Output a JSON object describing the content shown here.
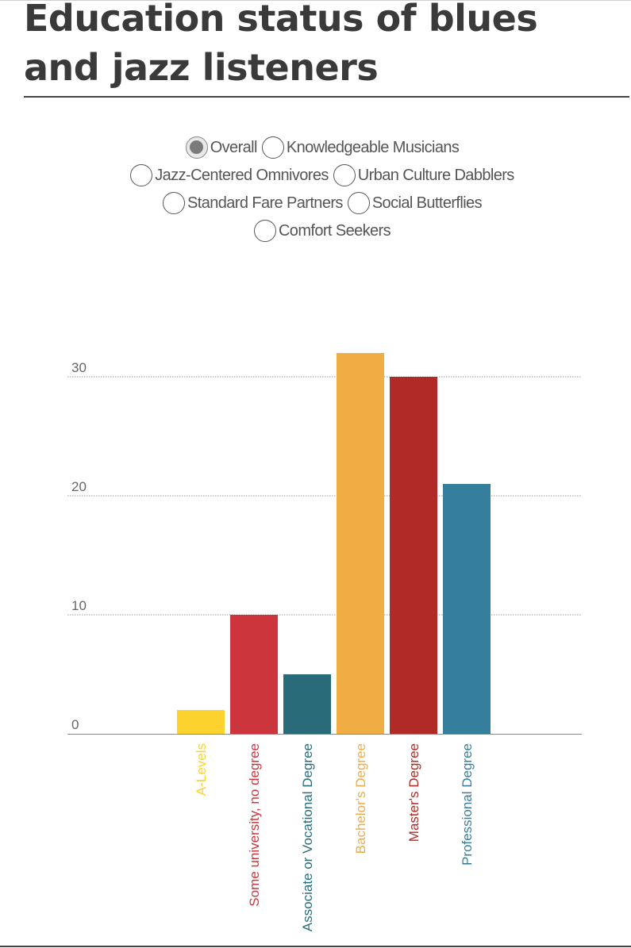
{
  "title": "Education status of blues and jazz listeners",
  "filters": {
    "rows": [
      [
        {
          "label": "Overall",
          "checked": true
        },
        {
          "label": "Knowledgeable Musicians",
          "checked": false
        }
      ],
      [
        {
          "label": "Jazz-Centered Omnivores",
          "checked": false
        },
        {
          "label": "Urban Culture Dabblers",
          "checked": false
        }
      ],
      [
        {
          "label": "Standard Fare Partners",
          "checked": false
        },
        {
          "label": "Social Butterflies",
          "checked": false
        }
      ],
      [
        {
          "label": "Comfort Seekers",
          "checked": false
        }
      ]
    ]
  },
  "chart_data": {
    "type": "bar",
    "categories": [
      "A-Levels",
      "Some university, no degree",
      "Associate or Vocational Degree",
      "Bachelor's Degree",
      "Master's Degree",
      "Professional Degree"
    ],
    "values": [
      2,
      10,
      5,
      32,
      30,
      21
    ],
    "colors": [
      "#fcd22e",
      "#cc353b",
      "#2a6b79",
      "#f0ad44",
      "#b02b27",
      "#357f9c"
    ],
    "yticks": [
      0,
      10,
      20,
      30
    ],
    "ylim": [
      0,
      32
    ],
    "grid": true,
    "legend": "none"
  }
}
